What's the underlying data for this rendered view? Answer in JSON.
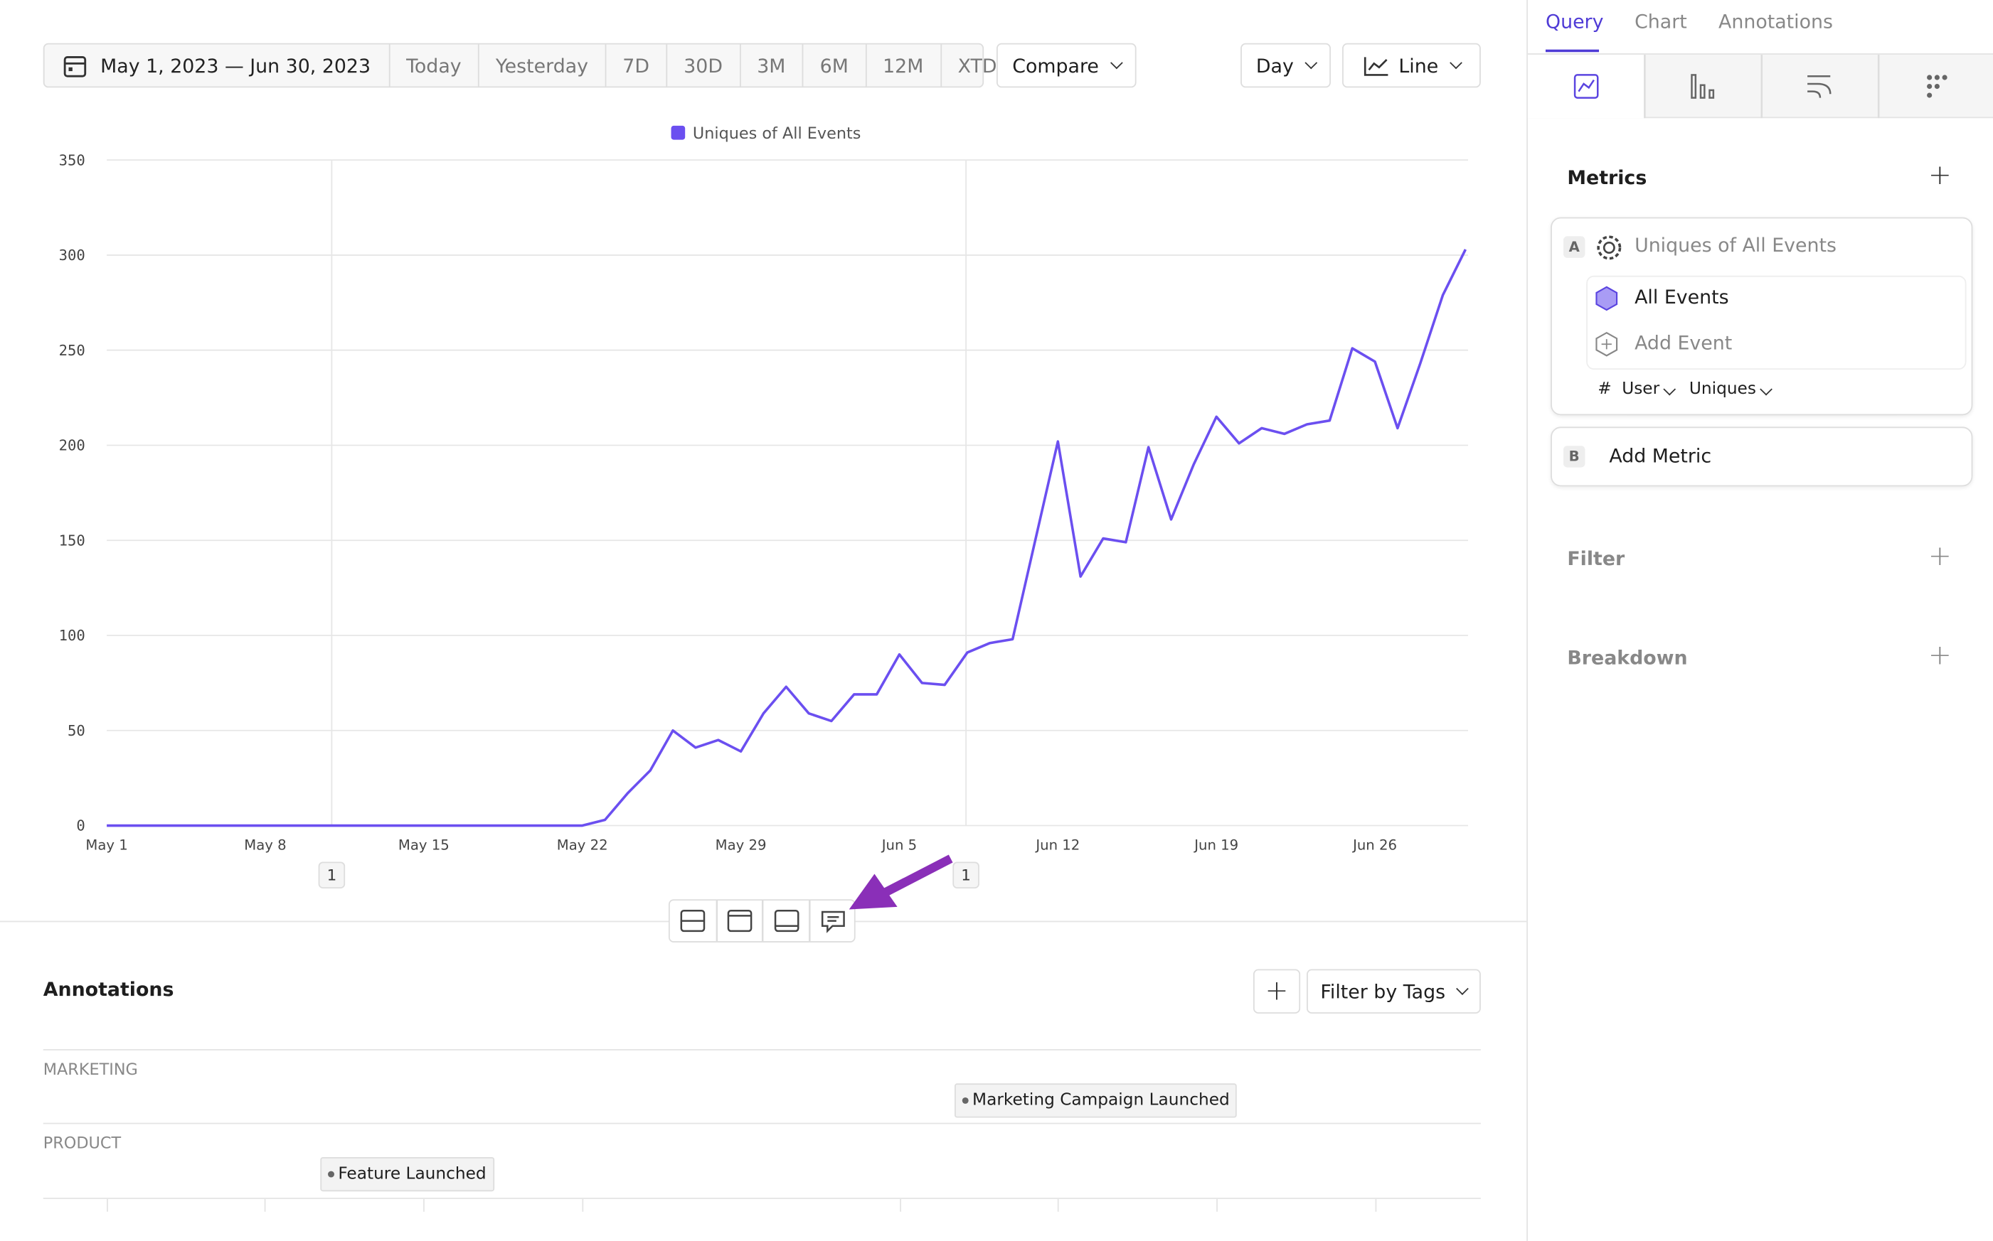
{
  "toolbar": {
    "date_range": "May 1, 2023 — Jun 30, 2023",
    "presets": [
      "Today",
      "Yesterday",
      "7D",
      "30D",
      "3M",
      "6M",
      "12M",
      "XTD"
    ],
    "compare": "Compare",
    "interval": "Day",
    "chart_type": "Line"
  },
  "chart_data": {
    "type": "line",
    "categories": [
      "May 1",
      null,
      null,
      null,
      null,
      null,
      null,
      "May 8",
      null,
      null,
      null,
      null,
      null,
      null,
      "May 15",
      null,
      null,
      null,
      null,
      null,
      null,
      "May 22",
      null,
      null,
      null,
      null,
      null,
      null,
      "May 29",
      null,
      null,
      null,
      null,
      null,
      null,
      "Jun 5",
      null,
      null,
      null,
      null,
      null,
      null,
      "Jun 12",
      null,
      null,
      null,
      null,
      null,
      null,
      "Jun 19",
      null,
      null,
      null,
      null,
      null,
      null,
      "Jun 26",
      null,
      null,
      null,
      null
    ],
    "series": [
      {
        "name": "Uniques of All Events",
        "color": "#6b4ff0",
        "values": [
          0,
          0,
          0,
          0,
          0,
          0,
          0,
          0,
          0,
          0,
          0,
          0,
          0,
          0,
          0,
          0,
          0,
          0,
          0,
          0,
          0,
          0,
          3,
          17,
          29,
          50,
          41,
          45,
          39,
          59,
          73,
          59,
          55,
          69,
          69,
          90,
          75,
          74,
          91,
          96,
          98,
          150,
          202,
          131,
          151,
          149,
          199,
          161,
          190,
          215,
          201,
          209,
          206,
          211,
          213,
          251,
          244,
          209,
          243,
          279,
          303
        ]
      }
    ],
    "ylim": [
      0,
      350
    ],
    "yticks": [
      0,
      50,
      100,
      150,
      200,
      250,
      300,
      350
    ],
    "grid": true,
    "annotation_markers": [
      "1",
      "1"
    ]
  },
  "annotations_panel": {
    "title": "Annotations",
    "filter": "Filter by Tags",
    "groups": [
      {
        "name": "MARKETING",
        "items": [
          "Marketing Campaign Launched"
        ]
      },
      {
        "name": "PRODUCT",
        "items": [
          "Feature Launched"
        ]
      }
    ]
  },
  "sidebar": {
    "tabs": [
      "Query",
      "Chart",
      "Annotations"
    ],
    "metrics_title": "Metrics",
    "metric": {
      "letter": "A",
      "name": "Uniques of All Events",
      "event": "All Events",
      "add_event": "Add Event",
      "hash": "#",
      "user": "User",
      "aggregation": "Uniques"
    },
    "add_metric": {
      "letter": "B",
      "label": "Add Metric"
    },
    "filter": "Filter",
    "breakdown": "Breakdown"
  }
}
